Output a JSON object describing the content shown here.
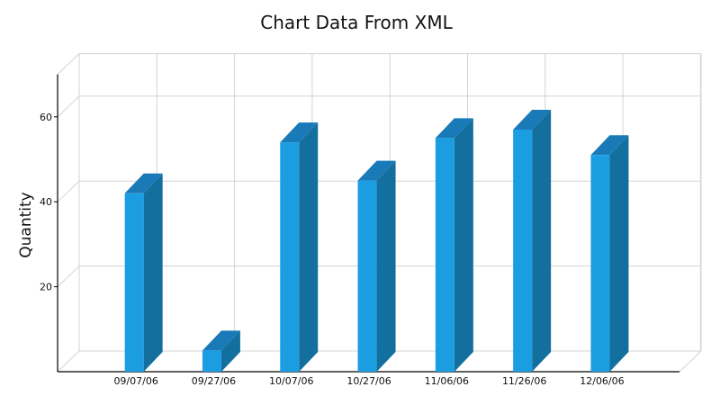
{
  "chart_data": {
    "type": "bar",
    "title": "Chart Data From XML",
    "xlabel": "",
    "ylabel": "Quantity",
    "categories": [
      "09/07/06",
      "09/27/06",
      "10/07/06",
      "10/27/06",
      "11/06/06",
      "11/26/06",
      "12/06/06"
    ],
    "values": [
      42,
      5,
      54,
      45,
      55,
      57,
      51
    ],
    "ylim": [
      0,
      70
    ],
    "yticks": [
      20,
      40,
      60
    ],
    "grid": true,
    "legend": "none",
    "three_d": true,
    "colors": {
      "bar_front": "#1b9de2",
      "bar_side": "#13709e",
      "bar_top": "#1a7ab8",
      "grid": "#d4d4d4",
      "axis": "#000000"
    }
  }
}
